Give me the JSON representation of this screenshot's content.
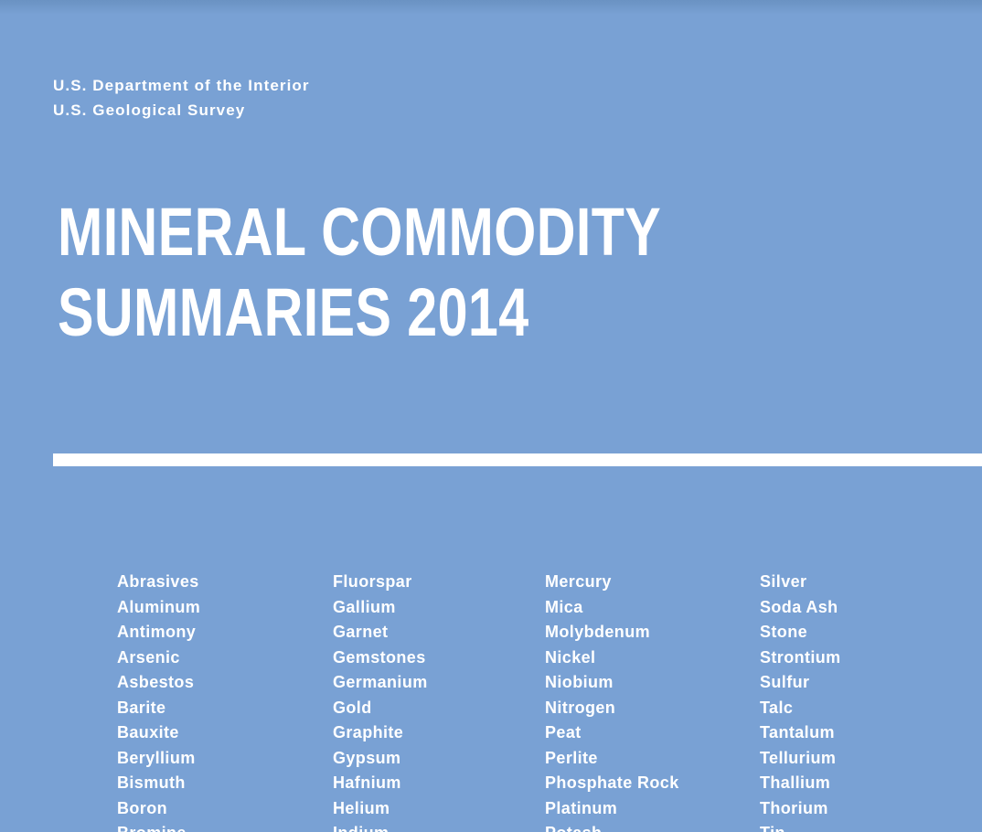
{
  "page": {
    "background_color": "#79a1d4",
    "text_color": "#ffffff",
    "rule_color": "#ffffff"
  },
  "header": {
    "line1": "U.S. Department of the Interior",
    "line2": "U.S. Geological Survey"
  },
  "title": {
    "line1": "MINERAL COMMODITY",
    "line2": "SUMMARIES 2014"
  },
  "commodities": {
    "note": "last item of each column is only partially visible at the cut-off bottom edge",
    "columns": [
      {
        "items": [
          "Abrasives",
          "Aluminum",
          "Antimony",
          "Arsenic",
          "Asbestos",
          "Barite",
          "Bauxite",
          "Beryllium",
          "Bismuth",
          "Boron",
          "Bromine"
        ]
      },
      {
        "items": [
          "Fluorspar",
          "Gallium",
          "Garnet",
          "Gemstones",
          "Germanium",
          "Gold",
          "Graphite",
          "Gypsum",
          "Hafnium",
          "Helium",
          "Indium"
        ]
      },
      {
        "items": [
          "Mercury",
          "Mica",
          "Molybdenum",
          "Nickel",
          "Niobium",
          "Nitrogen",
          "Peat",
          "Perlite",
          "Phosphate Rock",
          "Platinum",
          "Potash"
        ]
      },
      {
        "items": [
          "Silver",
          "Soda Ash",
          "Stone",
          "Strontium",
          "Sulfur",
          "Talc",
          "Tantalum",
          "Tellurium",
          "Thallium",
          "Thorium",
          "Tin"
        ]
      }
    ]
  }
}
